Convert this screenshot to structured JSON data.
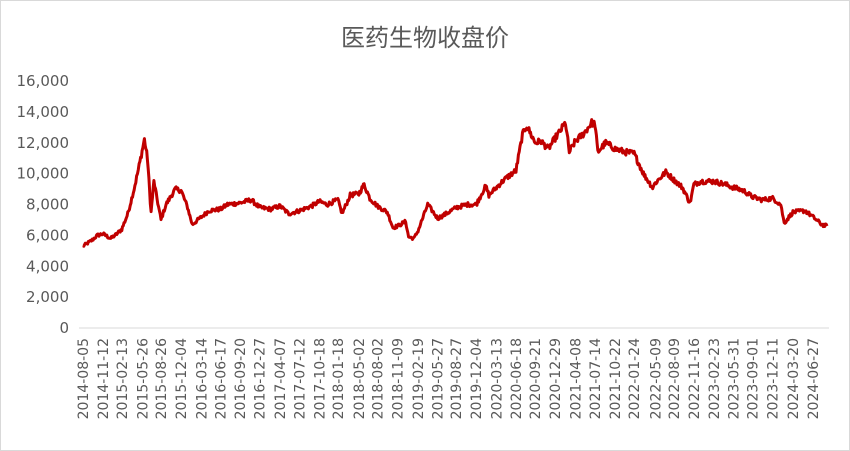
{
  "chart_data": {
    "type": "line",
    "title": "医药生物收盘价",
    "xlabel": "",
    "ylabel": "",
    "ylim": [
      0,
      16000
    ],
    "y_ticks": [
      "0",
      "2,000",
      "4,000",
      "6,000",
      "8,000",
      "10,000",
      "12,000",
      "14,000",
      "16,000"
    ],
    "x_ticks": [
      "2014-08-05",
      "2014-11-12",
      "2015-02-13",
      "2015-05-26",
      "2015-08-26",
      "2015-12-04",
      "2016-03-14",
      "2016-06-17",
      "2016-09-20",
      "2016-12-27",
      "2017-04-07",
      "2017-07-12",
      "2017-10-18",
      "2018-01-18",
      "2018-05-02",
      "2018-08-02",
      "2018-11-09",
      "2019-02-19",
      "2019-05-27",
      "2019-08-27",
      "2019-12-04",
      "2020-03-13",
      "2020-06-18",
      "2020-09-21",
      "2020-12-29",
      "2021-04-08",
      "2021-07-14",
      "2021-10-22",
      "2022-01-24",
      "2022-05-09",
      "2022-08-09",
      "2022-11-16",
      "2023-02-23",
      "2023-05-31",
      "2023-09-01",
      "2023-12-11",
      "2024-03-20",
      "2024-06-27"
    ],
    "grid": false,
    "series": [
      {
        "color": "#c00000",
        "points": [
          [
            "2014-08-05",
            5300
          ],
          [
            "2014-09-20",
            5700
          ],
          [
            "2014-10-15",
            6000
          ],
          [
            "2014-11-12",
            6100
          ],
          [
            "2014-12-20",
            5800
          ],
          [
            "2015-01-20",
            6100
          ],
          [
            "2015-02-13",
            6400
          ],
          [
            "2015-03-15",
            7400
          ],
          [
            "2015-04-15",
            9000
          ],
          [
            "2015-05-10",
            10500
          ],
          [
            "2015-06-05",
            12200
          ],
          [
            "2015-06-20",
            11000
          ],
          [
            "2015-07-08",
            7500
          ],
          [
            "2015-07-22",
            9500
          ],
          [
            "2015-08-26",
            7000
          ],
          [
            "2015-09-20",
            8000
          ],
          [
            "2015-11-05",
            9000
          ],
          [
            "2015-12-04",
            8900
          ],
          [
            "2016-01-05",
            7800
          ],
          [
            "2016-01-28",
            6700
          ],
          [
            "2016-03-14",
            7200
          ],
          [
            "2016-04-20",
            7600
          ],
          [
            "2016-06-17",
            7700
          ],
          [
            "2016-07-20",
            8000
          ],
          [
            "2016-09-20",
            8100
          ],
          [
            "2016-11-15",
            8300
          ],
          [
            "2016-12-27",
            7800
          ],
          [
            "2017-02-20",
            7700
          ],
          [
            "2017-04-07",
            7900
          ],
          [
            "2017-05-20",
            7400
          ],
          [
            "2017-07-12",
            7600
          ],
          [
            "2017-09-10",
            7900
          ],
          [
            "2017-10-18",
            8200
          ],
          [
            "2017-11-25",
            8000
          ],
          [
            "2018-01-18",
            8300
          ],
          [
            "2018-02-08",
            7400
          ],
          [
            "2018-03-20",
            8600
          ],
          [
            "2018-05-02",
            8700
          ],
          [
            "2018-05-28",
            9300
          ],
          [
            "2018-06-25",
            8400
          ],
          [
            "2018-08-02",
            7900
          ],
          [
            "2018-09-20",
            7500
          ],
          [
            "2018-10-18",
            6500
          ],
          [
            "2018-11-09",
            6600
          ],
          [
            "2018-12-20",
            6900
          ],
          [
            "2019-01-03",
            5900
          ],
          [
            "2019-01-30",
            5800
          ],
          [
            "2019-02-19",
            6300
          ],
          [
            "2019-04-08",
            8000
          ],
          [
            "2019-05-27",
            7100
          ],
          [
            "2019-06-25",
            7300
          ],
          [
            "2019-08-27",
            7800
          ],
          [
            "2019-10-20",
            8000
          ],
          [
            "2019-12-04",
            8000
          ],
          [
            "2020-01-20",
            9200
          ],
          [
            "2020-02-05",
            8600
          ],
          [
            "2020-03-13",
            9100
          ],
          [
            "2020-04-20",
            9600
          ],
          [
            "2020-06-18",
            10200
          ],
          [
            "2020-07-20",
            12500
          ],
          [
            "2020-08-10",
            13100
          ],
          [
            "2020-09-21",
            12000
          ],
          [
            "2020-10-20",
            12100
          ],
          [
            "2020-11-25",
            11600
          ],
          [
            "2020-12-29",
            12300
          ],
          [
            "2021-01-25",
            12800
          ],
          [
            "2021-02-18",
            13300
          ],
          [
            "2021-03-09",
            11400
          ],
          [
            "2021-04-08",
            12100
          ],
          [
            "2021-05-20",
            12600
          ],
          [
            "2021-06-28",
            13300
          ],
          [
            "2021-07-14",
            13200
          ],
          [
            "2021-07-28",
            11400
          ],
          [
            "2021-09-05",
            12000
          ],
          [
            "2021-10-22",
            11600
          ],
          [
            "2021-12-10",
            11400
          ],
          [
            "2022-01-24",
            11300
          ],
          [
            "2022-03-15",
            9900
          ],
          [
            "2022-04-26",
            9100
          ],
          [
            "2022-05-09",
            9400
          ],
          [
            "2022-06-30",
            10100
          ],
          [
            "2022-08-09",
            9600
          ],
          [
            "2022-09-20",
            9100
          ],
          [
            "2022-10-28",
            8100
          ],
          [
            "2022-11-16",
            9300
          ],
          [
            "2022-12-20",
            9500
          ],
          [
            "2023-02-23",
            9500
          ],
          [
            "2023-04-20",
            9300
          ],
          [
            "2023-05-31",
            9100
          ],
          [
            "2023-07-20",
            8900
          ],
          [
            "2023-09-01",
            8500
          ],
          [
            "2023-10-20",
            8300
          ],
          [
            "2023-12-11",
            8400
          ],
          [
            "2024-01-20",
            8000
          ],
          [
            "2024-02-06",
            6800
          ],
          [
            "2024-03-20",
            7500
          ],
          [
            "2024-05-20",
            7600
          ],
          [
            "2024-06-27",
            7200
          ],
          [
            "2024-08-10",
            6700
          ],
          [
            "2024-09-05",
            6600
          ]
        ]
      }
    ]
  }
}
